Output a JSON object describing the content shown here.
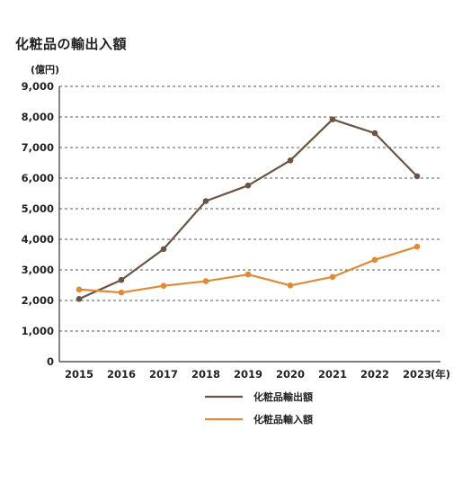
{
  "title": "化粧品の輸出入額",
  "chart_data": {
    "type": "line",
    "title": "化粧品の輸出入額",
    "ylabel": "(億円)",
    "xlabel": "",
    "x_unit": "(年)",
    "x": [
      "2015",
      "2016",
      "2017",
      "2018",
      "2019",
      "2020",
      "2021",
      "2022",
      "2023"
    ],
    "ylim": [
      0,
      9000
    ],
    "yticks": [
      0,
      1000,
      2000,
      3000,
      4000,
      5000,
      6000,
      7000,
      8000,
      9000
    ],
    "ytick_labels": [
      "0",
      "1,000",
      "2,000",
      "3,000",
      "4,000",
      "5,000",
      "6,000",
      "7,000",
      "8,000",
      "9,000"
    ],
    "grid": "horizontal dashed",
    "legend_position": "bottom-center",
    "series": [
      {
        "name": "化粧品輸出額",
        "color": "#6b5443",
        "values": [
          2050,
          2670,
          3680,
          5250,
          5760,
          6580,
          7920,
          7470,
          6060
        ]
      },
      {
        "name": "化粧品輸入額",
        "color": "#e08a34",
        "values": [
          2360,
          2260,
          2480,
          2630,
          2850,
          2490,
          2770,
          3330,
          3760
        ]
      }
    ]
  }
}
